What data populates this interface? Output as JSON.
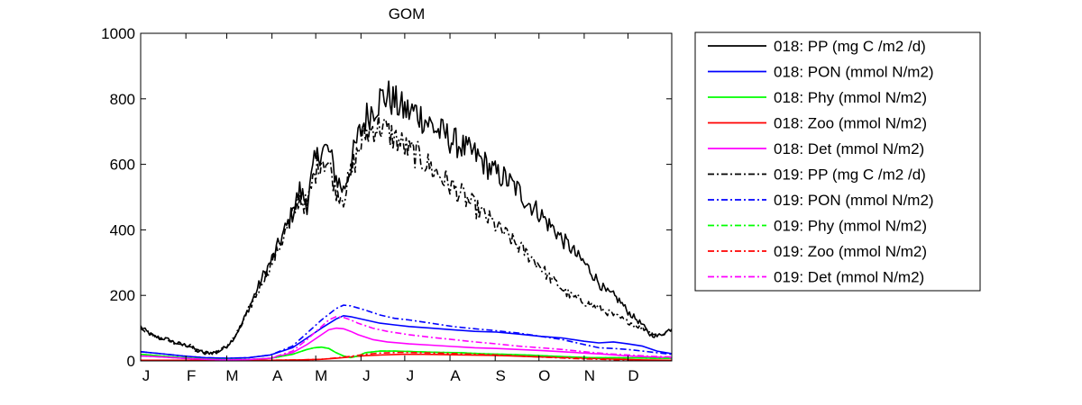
{
  "chart_data": {
    "type": "line",
    "title": "GOM",
    "xlabel": "",
    "ylabel": "",
    "categories": [
      "J",
      "F",
      "M",
      "A",
      "M",
      "J",
      "J",
      "A",
      "S",
      "O",
      "N",
      "D"
    ],
    "x_unit": "day of year",
    "xlim": [
      1,
      365
    ],
    "ylim": [
      0,
      1000
    ],
    "yticks": [
      0,
      200,
      400,
      600,
      800,
      1000
    ],
    "grid": false,
    "legend_position": "outside-right",
    "series": [
      {
        "name": "018: PP (mg C /m2 /d)",
        "color": "#000000",
        "style": "solid",
        "noisy": true,
        "x": [
          1,
          5,
          10,
          15,
          20,
          25,
          30,
          35,
          40,
          45,
          50,
          55,
          60,
          65,
          70,
          75,
          80,
          85,
          90,
          95,
          100,
          105,
          110,
          115,
          120,
          125,
          130,
          135,
          140,
          145,
          150,
          155,
          160,
          165,
          170,
          175,
          180,
          185,
          190,
          195,
          200,
          205,
          210,
          215,
          220,
          225,
          230,
          235,
          240,
          245,
          250,
          255,
          260,
          265,
          270,
          275,
          280,
          285,
          290,
          295,
          300,
          305,
          310,
          315,
          320,
          325,
          330,
          335,
          340,
          345,
          350,
          355,
          360,
          365
        ],
        "y": [
          105,
          90,
          75,
          70,
          65,
          55,
          50,
          45,
          30,
          25,
          25,
          30,
          45,
          70,
          110,
          160,
          210,
          260,
          300,
          350,
          400,
          450,
          520,
          480,
          600,
          650,
          640,
          560,
          520,
          600,
          680,
          740,
          770,
          800,
          810,
          790,
          770,
          760,
          760,
          740,
          720,
          700,
          690,
          670,
          660,
          640,
          630,
          610,
          590,
          570,
          560,
          540,
          520,
          490,
          470,
          450,
          420,
          400,
          370,
          350,
          320,
          300,
          270,
          240,
          210,
          200,
          180,
          150,
          130,
          110,
          80,
          75,
          85,
          100
        ]
      },
      {
        "name": "018: PON (mmol N/m2)",
        "color": "#0000ff",
        "style": "solid",
        "x": [
          1,
          15,
          30,
          45,
          60,
          75,
          90,
          105,
          115,
          125,
          135,
          140,
          145,
          155,
          165,
          175,
          185,
          200,
          215,
          230,
          245,
          260,
          275,
          290,
          305,
          315,
          325,
          335,
          345,
          355,
          365
        ],
        "y": [
          28,
          22,
          15,
          10,
          8,
          10,
          18,
          40,
          70,
          100,
          128,
          138,
          135,
          125,
          115,
          110,
          105,
          100,
          95,
          90,
          88,
          82,
          75,
          70,
          60,
          55,
          58,
          52,
          45,
          30,
          22
        ]
      },
      {
        "name": "018: Phy (mmol N/m2)",
        "color": "#00ff00",
        "style": "solid",
        "x": [
          1,
          15,
          30,
          45,
          60,
          75,
          90,
          105,
          115,
          120,
          125,
          130,
          135,
          140,
          145,
          150,
          155,
          165,
          175,
          190,
          205,
          220,
          235,
          250,
          265,
          280,
          295,
          310,
          325,
          340,
          355,
          365
        ],
        "y": [
          20,
          15,
          10,
          6,
          4,
          4,
          8,
          20,
          35,
          40,
          42,
          38,
          25,
          15,
          10,
          15,
          25,
          30,
          30,
          28,
          26,
          25,
          22,
          20,
          18,
          15,
          12,
          10,
          10,
          9,
          8,
          8
        ]
      },
      {
        "name": "018: Zoo (mmol N/m2)",
        "color": "#ff0000",
        "style": "solid",
        "x": [
          1,
          30,
          60,
          90,
          110,
          125,
          135,
          145,
          155,
          165,
          180,
          195,
          210,
          225,
          240,
          255,
          270,
          285,
          300,
          315,
          330,
          345,
          365
        ],
        "y": [
          2,
          2,
          2,
          2,
          3,
          5,
          8,
          12,
          16,
          18,
          20,
          20,
          19,
          18,
          17,
          15,
          13,
          11,
          9,
          7,
          5,
          3,
          2
        ]
      },
      {
        "name": "018: Det (mmol N/m2)",
        "color": "#ff00ff",
        "style": "solid",
        "x": [
          1,
          15,
          30,
          45,
          60,
          75,
          90,
          105,
          115,
          125,
          130,
          135,
          140,
          145,
          150,
          160,
          170,
          185,
          200,
          215,
          230,
          245,
          260,
          275,
          290,
          305,
          320,
          335,
          350,
          365
        ],
        "y": [
          15,
          12,
          8,
          5,
          3,
          4,
          8,
          25,
          50,
          80,
          95,
          100,
          98,
          90,
          80,
          65,
          58,
          52,
          48,
          44,
          40,
          38,
          35,
          32,
          28,
          24,
          20,
          15,
          12,
          10
        ]
      },
      {
        "name": "019: PP (mg C /m2 /d)",
        "color": "#000000",
        "style": "dashdot",
        "noisy": true,
        "x": [
          1,
          5,
          10,
          15,
          20,
          25,
          30,
          35,
          40,
          45,
          50,
          55,
          60,
          65,
          70,
          75,
          80,
          85,
          90,
          95,
          100,
          105,
          110,
          115,
          120,
          125,
          130,
          135,
          140,
          145,
          150,
          155,
          160,
          165,
          170,
          175,
          180,
          185,
          190,
          195,
          200,
          205,
          210,
          215,
          220,
          225,
          230,
          235,
          240,
          245,
          250,
          255,
          260,
          265,
          270,
          275,
          280,
          285,
          290,
          295,
          300,
          305,
          310,
          315,
          320,
          325,
          330,
          335,
          340,
          345,
          350,
          355,
          360,
          365
        ],
        "y": [
          105,
          90,
          75,
          70,
          65,
          55,
          50,
          45,
          30,
          25,
          25,
          30,
          45,
          70,
          108,
          155,
          200,
          250,
          290,
          340,
          390,
          440,
          500,
          470,
          570,
          620,
          600,
          520,
          500,
          570,
          640,
          690,
          710,
          720,
          700,
          680,
          660,
          640,
          630,
          610,
          590,
          570,
          550,
          530,
          510,
          490,
          470,
          450,
          430,
          410,
          390,
          370,
          350,
          330,
          310,
          290,
          260,
          240,
          220,
          200,
          190,
          180,
          170,
          160,
          150,
          140,
          130,
          120,
          110,
          100,
          90,
          80,
          85,
          95
        ]
      },
      {
        "name": "019: PON (mmol N/m2)",
        "color": "#0000ff",
        "style": "dashdot",
        "x": [
          1,
          15,
          30,
          45,
          60,
          75,
          90,
          105,
          115,
          125,
          135,
          140,
          145,
          155,
          165,
          175,
          185,
          200,
          215,
          230,
          245,
          260,
          275,
          290,
          305,
          315,
          325,
          335,
          345,
          355,
          365
        ],
        "y": [
          28,
          22,
          15,
          10,
          8,
          10,
          18,
          45,
          85,
          125,
          160,
          170,
          168,
          155,
          140,
          130,
          125,
          115,
          105,
          98,
          92,
          85,
          75,
          65,
          50,
          40,
          38,
          35,
          30,
          25,
          20
        ]
      },
      {
        "name": "019: Phy (mmol N/m2)",
        "color": "#00ff00",
        "style": "dashdot",
        "x": [
          1,
          15,
          30,
          45,
          60,
          75,
          90,
          105,
          115,
          120,
          125,
          130,
          135,
          140,
          145,
          150,
          155,
          165,
          175,
          190,
          205,
          220,
          235,
          250,
          265,
          280,
          295,
          310,
          325,
          340,
          355,
          365
        ],
        "y": [
          20,
          15,
          10,
          6,
          4,
          4,
          8,
          20,
          35,
          40,
          42,
          38,
          25,
          15,
          10,
          15,
          25,
          30,
          30,
          28,
          26,
          25,
          22,
          20,
          18,
          15,
          12,
          10,
          10,
          9,
          8,
          8
        ]
      },
      {
        "name": "019: Zoo (mmol N/m2)",
        "color": "#ff0000",
        "style": "dashdot",
        "x": [
          1,
          30,
          60,
          90,
          110,
          125,
          135,
          145,
          155,
          165,
          180,
          195,
          210,
          225,
          240,
          255,
          270,
          285,
          300,
          315,
          330,
          345,
          365
        ],
        "y": [
          2,
          2,
          2,
          2,
          3,
          5,
          9,
          14,
          20,
          24,
          26,
          25,
          23,
          21,
          19,
          16,
          13,
          10,
          7,
          5,
          3,
          2,
          2
        ]
      },
      {
        "name": "019: Det (mmol N/m2)",
        "color": "#ff00ff",
        "style": "dashdot",
        "x": [
          1,
          15,
          30,
          45,
          60,
          75,
          90,
          105,
          115,
          125,
          130,
          135,
          140,
          145,
          150,
          160,
          170,
          185,
          200,
          215,
          230,
          245,
          260,
          275,
          290,
          305,
          320,
          335,
          350,
          365
        ],
        "y": [
          15,
          12,
          8,
          5,
          3,
          4,
          8,
          30,
          65,
          105,
          125,
          135,
          133,
          125,
          115,
          100,
          90,
          80,
          72,
          65,
          58,
          52,
          45,
          40,
          35,
          28,
          22,
          18,
          14,
          12
        ]
      }
    ]
  }
}
